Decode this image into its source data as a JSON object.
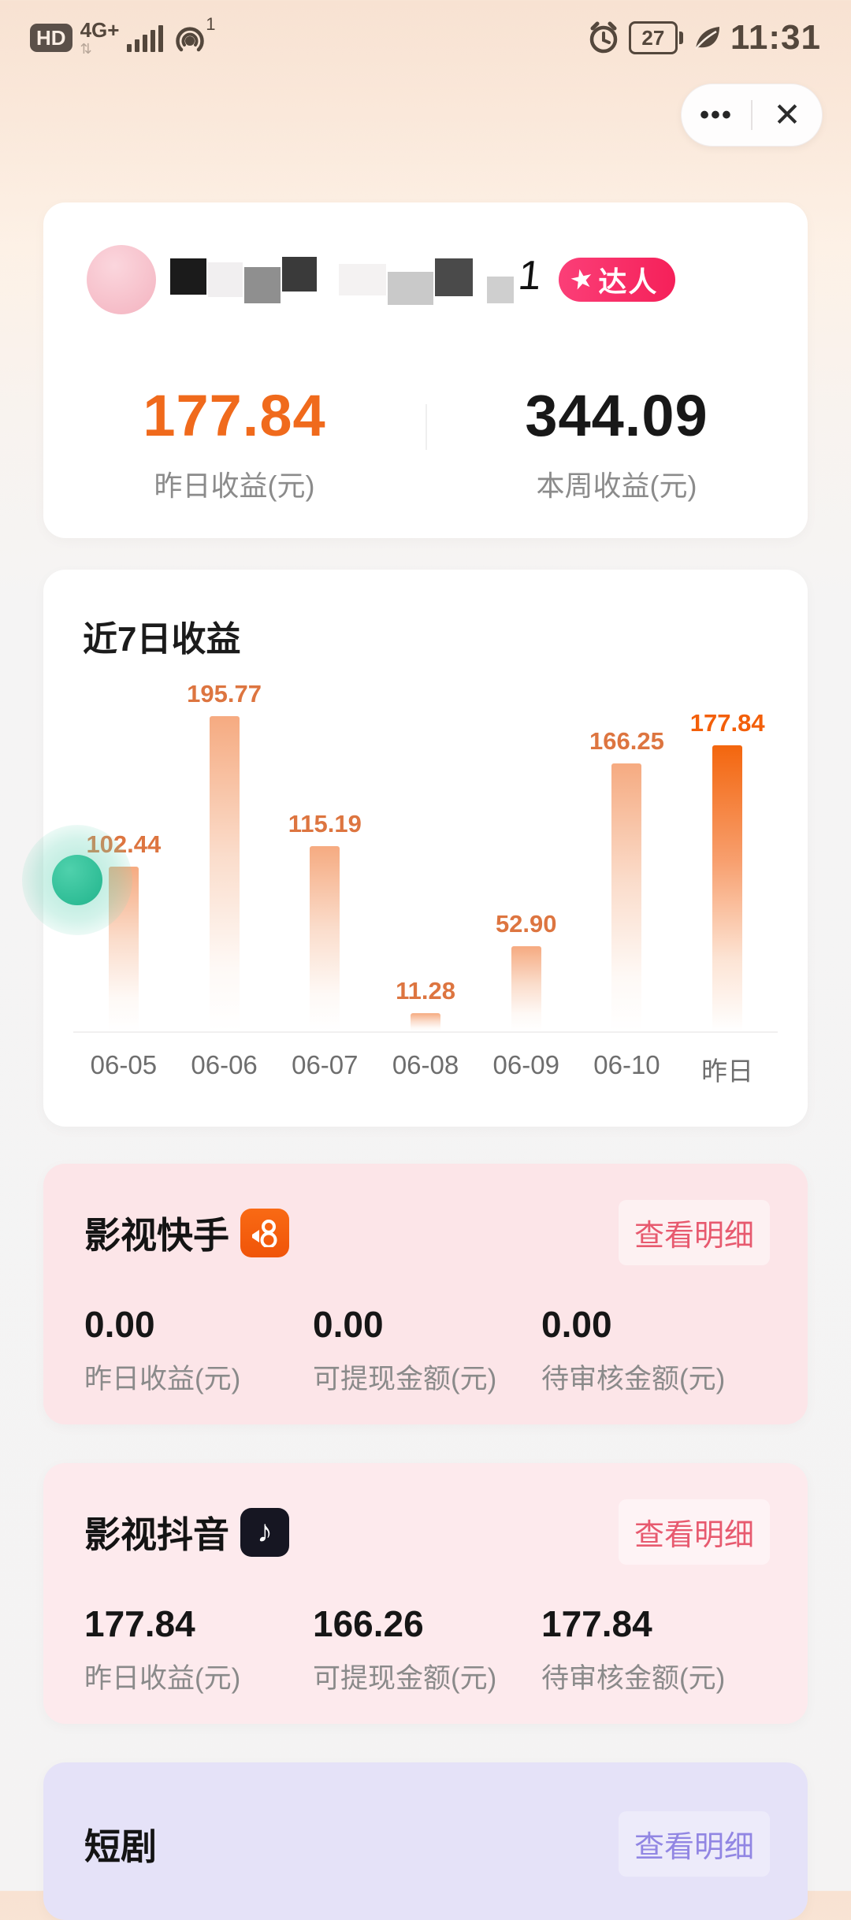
{
  "status_bar": {
    "hd": "HD",
    "network": "4G+",
    "network_sub": "⇅",
    "hotspot_count": "1",
    "battery_percent": "27",
    "time": "11:31"
  },
  "capsule": {
    "more": "•••",
    "close": "✕"
  },
  "profile_card": {
    "username_visible_char": "1",
    "badge": {
      "star": "★",
      "label": "达人"
    },
    "yesterday": {
      "value": "177.84",
      "label": "昨日收益(元)"
    },
    "week": {
      "value": "344.09",
      "label": "本周收益(元)"
    }
  },
  "chart_data": {
    "type": "bar",
    "title": "近7日收益",
    "categories": [
      "06-05",
      "06-06",
      "06-07",
      "06-08",
      "06-09",
      "06-10",
      "昨日"
    ],
    "values": [
      102.44,
      195.77,
      115.19,
      11.28,
      52.9,
      166.25,
      177.84
    ],
    "value_labels": [
      "102.44",
      "195.77",
      "115.19",
      "11.28",
      "52.90",
      "166.25",
      "177.84"
    ],
    "highlight_index": 6,
    "xlabel": "",
    "ylabel": "",
    "ylim": [
      0,
      200
    ],
    "grid": false,
    "legend": false,
    "bar_color": "#F5A67A",
    "highlight_color": "#F3660E",
    "label_color": "#DD7540"
  },
  "platform_cards": [
    {
      "title": "影视快手",
      "icon": "kuaishou-icon",
      "action": "查看明细",
      "metrics": [
        {
          "value": "0.00",
          "label": "昨日收益(元)"
        },
        {
          "value": "0.00",
          "label": "可提现金额(元)"
        },
        {
          "value": "0.00",
          "label": "待审核金额(元)"
        }
      ],
      "bg_color": "#FCE5E8",
      "action_color": "#E75A6F"
    },
    {
      "title": "影视抖音",
      "icon": "douyin-icon",
      "action": "查看明细",
      "metrics": [
        {
          "value": "177.84",
          "label": "昨日收益(元)"
        },
        {
          "value": "166.26",
          "label": "可提现金额(元)"
        },
        {
          "value": "177.84",
          "label": "待审核金额(元)"
        }
      ],
      "bg_color": "#FDEAED",
      "action_color": "#E75A6F"
    },
    {
      "title": "短剧",
      "icon": null,
      "action": "查看明细",
      "metrics": [],
      "bg_color": "#E5E2F8",
      "action_color": "#9186E3"
    }
  ],
  "floating_button_color": "#2FBD96",
  "douyin_note": "♪"
}
